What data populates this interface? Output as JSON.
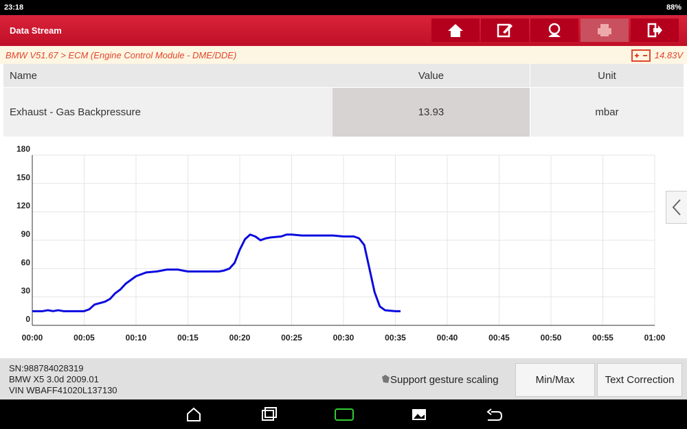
{
  "status_bar": {
    "time": "23:18",
    "battery": "88%"
  },
  "header": {
    "title": "Data Stream"
  },
  "breadcrumb": "BMW V51.67 > ECM (Engine Control Module - DME/DDE)",
  "voltage": "14.83V",
  "table": {
    "columns": [
      "Name",
      "Value",
      "Unit"
    ],
    "rows": [
      [
        "Exhaust - Gas Backpressure",
        "13.93",
        "mbar"
      ]
    ]
  },
  "chart_data": {
    "type": "line",
    "x": [
      0,
      1,
      1.5,
      2,
      2.5,
      3,
      4,
      5,
      5.5,
      6,
      7,
      7.5,
      8,
      8.5,
      9,
      9.5,
      10,
      10.5,
      11,
      12,
      12.5,
      13,
      14,
      14.5,
      15,
      16,
      17,
      18,
      18.5,
      19,
      19.5,
      20,
      20.5,
      21,
      21.5,
      22,
      22.5,
      23,
      24,
      24.5,
      25,
      26,
      27,
      28,
      29,
      30,
      31,
      31.5,
      32,
      32.5,
      33,
      33.5,
      34,
      35,
      35.5
    ],
    "series": [
      {
        "color": "#0a0ae0",
        "values": [
          15,
          15,
          16,
          15,
          16,
          15,
          15,
          15,
          17,
          22,
          25,
          28,
          34,
          38,
          44,
          48,
          52,
          54,
          56,
          57,
          58,
          59,
          59,
          58,
          57,
          57,
          57,
          57,
          58,
          60,
          66,
          80,
          91,
          96,
          94,
          90,
          92,
          93,
          94,
          96,
          96,
          95,
          95,
          95,
          95,
          94,
          94,
          92,
          85,
          60,
          35,
          20,
          16,
          15,
          15
        ]
      }
    ],
    "xlim": [
      0,
      60
    ],
    "xticks": [
      {
        "value": 0,
        "label": "00:00"
      },
      {
        "value": 5,
        "label": "00:05"
      },
      {
        "value": 10,
        "label": "00:10"
      },
      {
        "value": 15,
        "label": "00:15"
      },
      {
        "value": 20,
        "label": "00:20"
      },
      {
        "value": 25,
        "label": "00:25"
      },
      {
        "value": 30,
        "label": "00:30"
      },
      {
        "value": 35,
        "label": "00:35"
      },
      {
        "value": 40,
        "label": "00:40"
      },
      {
        "value": 45,
        "label": "00:45"
      },
      {
        "value": 50,
        "label": "00:50"
      },
      {
        "value": 55,
        "label": "00:55"
      },
      {
        "value": 60,
        "label": "01:00"
      }
    ],
    "ylim": [
      0,
      180
    ],
    "yticks": [
      0,
      30,
      60,
      90,
      120,
      150,
      180
    ],
    "grid": true
  },
  "footer": {
    "sn": "SN:988784028319",
    "vehicle": "BMW X5 3.0d 2009.01",
    "vin": "VIN WBAFF41020L137130",
    "gesture_hint": "Support gesture scaling",
    "buttons": [
      "Min/Max",
      "Text Correction"
    ]
  }
}
